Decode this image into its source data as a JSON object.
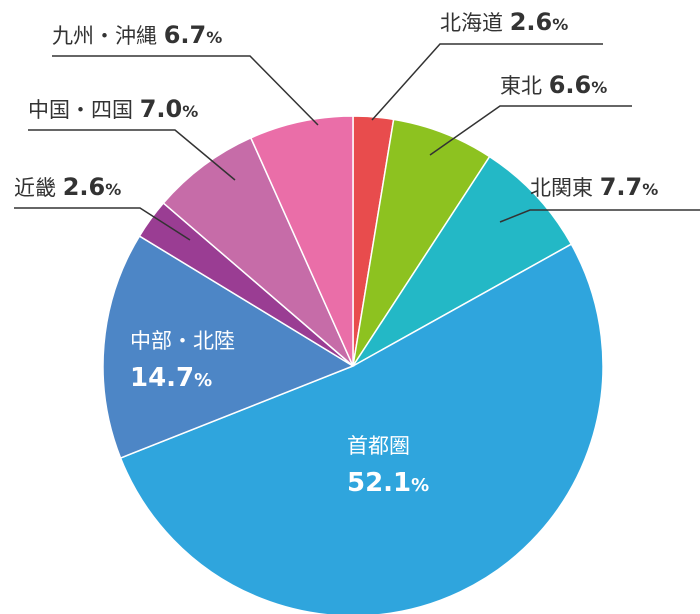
{
  "chart_data": {
    "type": "pie",
    "unit": "%",
    "slices": [
      {
        "name": "北海道",
        "value": 2.6,
        "value_label": "2.6",
        "color": "#e84c4d"
      },
      {
        "name": "東北",
        "value": 6.6,
        "value_label": "6.6",
        "color": "#8dc220"
      },
      {
        "name": "北関東",
        "value": 7.7,
        "value_label": "7.7",
        "color": "#23b8c6"
      },
      {
        "name": "首都圏",
        "value": 52.1,
        "value_label": "52.1",
        "color": "#2fa5dd"
      },
      {
        "name": "中部・北陸",
        "value": 14.7,
        "value_label": "14.7",
        "color": "#4d86c6"
      },
      {
        "name": "近畿",
        "value": 2.6,
        "value_label": "2.6",
        "color": "#9a3d93"
      },
      {
        "name": "中国・四国",
        "value": 7.0,
        "value_label": "7.0",
        "color": "#c66ca8"
      },
      {
        "name": "九州・沖縄",
        "value": 6.7,
        "value_label": "6.7",
        "color": "#ea6ea8"
      }
    ]
  }
}
